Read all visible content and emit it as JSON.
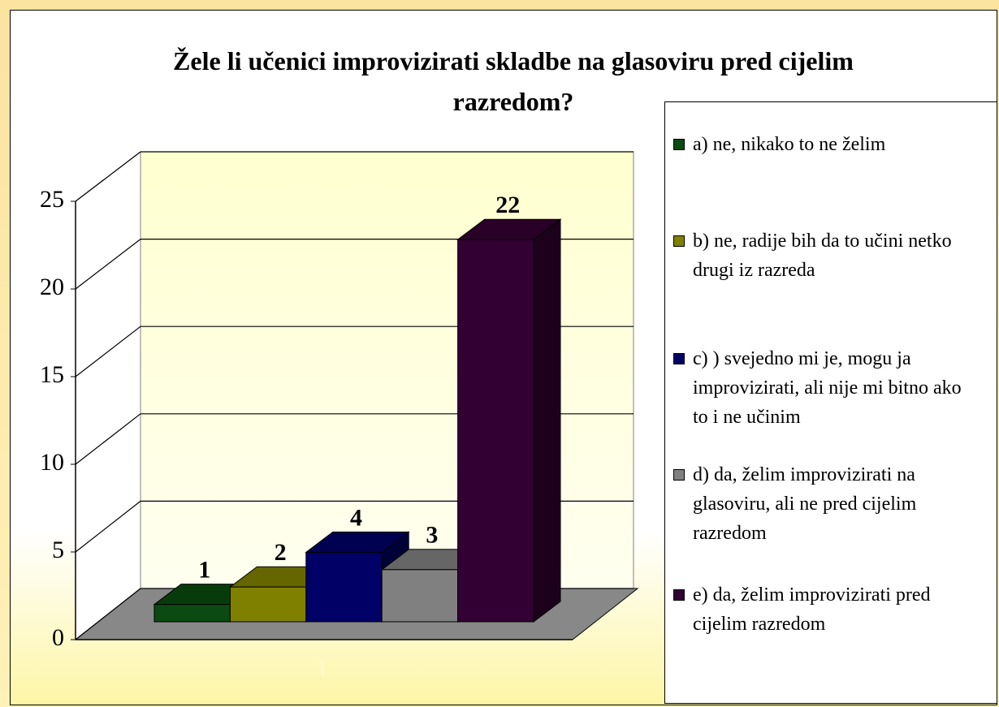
{
  "chart_data": {
    "type": "bar3d",
    "title": "Žele li učenici improvizirati skladbe na glasoviru pred cijelim razredom?",
    "categories": [
      "1"
    ],
    "series": [
      {
        "name": "a) ne, nikako to ne želim",
        "color": "#0b4a10",
        "values": [
          1
        ]
      },
      {
        "name": "b) ne, radije bih da to učini netko drugi iz razreda",
        "color": "#808000",
        "values": [
          2
        ]
      },
      {
        "name": "c) )  svejedno mi je, mogu ja improvizirati, ali nije mi bitno ako to i ne učinim",
        "color": "#000066",
        "values": [
          4
        ]
      },
      {
        "name": "d) da, želim improvizirati na glasoviru, ali ne pred cijelim razredom",
        "color": "#808080",
        "values": [
          3
        ]
      },
      {
        "name": "e) da, želim improvizirati pred cijelim razredom",
        "color": "#330033",
        "values": [
          22
        ]
      }
    ],
    "ylim": [
      0,
      25
    ],
    "yticks": [
      0,
      5,
      10,
      15,
      20,
      25
    ],
    "grid": true,
    "legend": "right"
  }
}
